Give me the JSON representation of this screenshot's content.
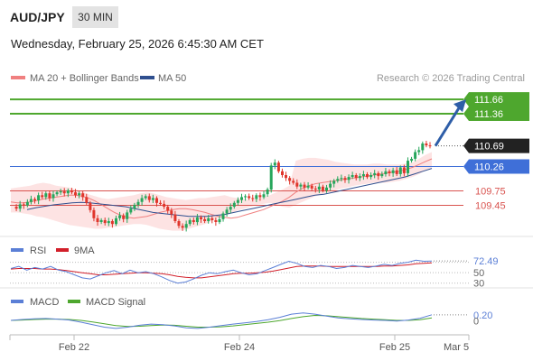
{
  "header": {
    "symbol": "AUD/JPY",
    "timeframe": "30 MIN",
    "datetime": "Wednesday, February 25, 2026 6:45:30 AM CET"
  },
  "colors": {
    "up": "#26a65b",
    "down": "#e0362c",
    "resistance": "#4ea72e",
    "support_line": "#d9534f",
    "pivot": "#3f6fd8",
    "ma20": "#f08080",
    "ma50": "#2f4f8f",
    "band_fill": "#fde3e3",
    "arrow": "#2e5ea8",
    "rsi": "#5b7fd6",
    "rsi_ma": "#d21f2a",
    "macd": "#5b7fd6",
    "macd_signal": "#4ea72e"
  },
  "chart_data": [
    {
      "type": "candlestick",
      "legend": [
        {
          "label": "MA 20 + Bollinger Bands",
          "color": "#f08080"
        },
        {
          "label": "MA 50",
          "color": "#2f4f8f"
        }
      ],
      "legend_placement": "top-left",
      "credit": "Research © 2026 Trading Central",
      "ylim": [
        108.8,
        111.85
      ],
      "levels": [
        {
          "value": 111.66,
          "label": "111.66",
          "kind": "resistance"
        },
        {
          "value": 111.36,
          "label": "111.36",
          "kind": "resistance"
        },
        {
          "value": 110.69,
          "label": "110.69",
          "kind": "last"
        },
        {
          "value": 110.26,
          "label": "110.26",
          "kind": "pivot"
        },
        {
          "value": 109.75,
          "label": "109.75",
          "kind": "support"
        },
        {
          "value": 109.45,
          "label": "109.45",
          "kind": "support"
        }
      ],
      "closes": [
        109.42,
        109.38,
        109.47,
        109.45,
        109.52,
        109.58,
        109.55,
        109.66,
        109.62,
        109.7,
        109.6,
        109.68,
        109.72,
        109.74,
        109.7,
        109.76,
        109.72,
        109.66,
        109.7,
        109.62,
        109.5,
        109.35,
        109.18,
        109.1,
        109.14,
        109.08,
        109.12,
        109.06,
        109.18,
        109.24,
        109.16,
        109.3,
        109.38,
        109.46,
        109.52,
        109.6,
        109.64,
        109.56,
        109.6,
        109.5,
        109.48,
        109.42,
        109.34,
        109.26,
        109.12,
        109.02,
        108.98,
        109.06,
        109.14,
        109.1,
        109.2,
        109.16,
        109.12,
        109.18,
        109.14,
        109.1,
        109.16,
        109.28,
        109.36,
        109.42,
        109.5,
        109.56,
        109.62,
        109.64,
        109.6,
        109.58,
        109.66,
        109.62,
        109.68,
        109.78,
        110.28,
        110.34,
        110.16,
        110.08,
        110.02,
        109.96,
        109.92,
        109.84,
        109.88,
        109.82,
        109.86,
        109.8,
        109.78,
        109.84,
        109.76,
        109.82,
        109.9,
        109.96,
        110.0,
        110.02,
        109.98,
        110.04,
        110.08,
        110.02,
        110.06,
        110.1,
        110.04,
        110.08,
        110.12,
        110.06,
        110.1,
        110.16,
        110.12,
        110.18,
        110.1,
        110.24,
        110.12,
        110.38,
        110.42,
        110.56,
        110.6,
        110.74,
        110.7,
        110.69
      ],
      "bands": {
        "upper": [
          109.8,
          109.82,
          109.84,
          109.86,
          109.9,
          109.92,
          109.9,
          109.86,
          109.84,
          109.82,
          109.78,
          109.74,
          109.68,
          109.64,
          109.6,
          109.58,
          109.6,
          109.62,
          109.64,
          109.66,
          109.7,
          109.72,
          109.7,
          109.66,
          109.62,
          109.6,
          109.58,
          109.56,
          109.58,
          109.6,
          109.6,
          109.62,
          109.64,
          109.66,
          109.62,
          109.6,
          109.58,
          109.56,
          109.58,
          109.62,
          109.66,
          109.72,
          109.78,
          109.86,
          110.38,
          110.42,
          110.44,
          110.44,
          110.42,
          110.4,
          110.36,
          110.34,
          110.32,
          110.3,
          110.3,
          110.3,
          110.32,
          110.32,
          110.3,
          110.3,
          110.3,
          110.32,
          110.34,
          110.42,
          110.5,
          110.56
        ],
        "lower": [
          109.3,
          109.3,
          109.28,
          109.26,
          109.22,
          109.2,
          109.16,
          109.12,
          109.08,
          109.04,
          109.02,
          109.0,
          108.98,
          108.96,
          108.96,
          108.98,
          109.0,
          109.02,
          109.04,
          109.06,
          109.06,
          109.04,
          109.0,
          108.96,
          108.94,
          108.92,
          108.92,
          108.94,
          108.98,
          109.02,
          109.06,
          109.12,
          109.18,
          109.24,
          109.28,
          109.34,
          109.38,
          109.42,
          109.46,
          109.48,
          109.5,
          109.46,
          109.42,
          109.4,
          109.46,
          109.52,
          109.58,
          109.64,
          109.68,
          109.72,
          109.76,
          109.8,
          109.82,
          109.86,
          109.88,
          109.9,
          109.92,
          109.92,
          109.92,
          109.94,
          109.96,
          110.0,
          110.04,
          110.1,
          110.18,
          110.24
        ]
      },
      "ma20": [
        109.52,
        109.5,
        109.5,
        109.52,
        109.55,
        109.58,
        109.6,
        109.62,
        109.64,
        109.66,
        109.66,
        109.64,
        109.6,
        109.54,
        109.46,
        109.38,
        109.3,
        109.24,
        109.2,
        109.18,
        109.2,
        109.22,
        109.26,
        109.3,
        109.33,
        109.36,
        109.38,
        109.38,
        109.36,
        109.33,
        109.3,
        109.26,
        109.22,
        109.2,
        109.18,
        109.2,
        109.24,
        109.28,
        109.32,
        109.36,
        109.42,
        109.48,
        109.54,
        109.62,
        109.72,
        109.8,
        109.86,
        109.9,
        109.92,
        109.94,
        109.96,
        109.98,
        110.0,
        110.02,
        110.04,
        110.06,
        110.08,
        110.1,
        110.12,
        110.14,
        110.16,
        110.2,
        110.24,
        110.3,
        110.36,
        110.42
      ],
      "ma50": [
        109.36,
        109.4,
        109.43,
        109.46,
        109.48,
        109.5,
        109.51,
        109.5,
        109.48,
        109.46,
        109.44,
        109.42,
        109.38,
        109.34,
        109.3,
        109.28,
        109.26,
        109.24,
        109.22,
        109.22,
        109.22,
        109.24,
        109.26,
        109.3,
        109.34,
        109.38,
        109.42,
        109.46,
        109.5,
        109.54,
        109.58,
        109.62,
        109.66,
        109.68,
        109.72,
        109.76,
        109.8,
        109.84,
        109.88,
        109.92,
        109.96,
        110.0,
        110.04,
        110.1,
        110.16,
        110.22
      ]
    },
    {
      "type": "line",
      "legend": [
        {
          "label": "RSI",
          "color": "#5b7fd6"
        },
        {
          "label": "9MA",
          "color": "#d21f2a"
        }
      ],
      "ylim": [
        26,
        78
      ],
      "guides": [
        70,
        50,
        30
      ],
      "tick_labels": [
        "72.49",
        "50",
        "30"
      ],
      "series": [
        {
          "name": "RSI",
          "values": [
            58,
            62,
            55,
            60,
            57,
            62,
            55,
            52,
            46,
            40,
            38,
            44,
            50,
            54,
            48,
            55,
            50,
            52,
            48,
            42,
            35,
            30,
            32,
            38,
            45,
            50,
            48,
            52,
            55,
            50,
            46,
            48,
            54,
            60,
            66,
            72,
            68,
            62,
            60,
            64,
            62,
            58,
            60,
            64,
            62,
            60,
            63,
            66,
            64,
            68,
            70,
            74,
            72,
            72.49
          ]
        },
        {
          "name": "9MA",
          "values": [
            57,
            58,
            58,
            58,
            57,
            57,
            56,
            54,
            52,
            50,
            48,
            46,
            46,
            47,
            48,
            49,
            50,
            50,
            49,
            48,
            46,
            43,
            41,
            40,
            40,
            42,
            44,
            46,
            48,
            49,
            49,
            50,
            51,
            53,
            56,
            59,
            62,
            63,
            63,
            63,
            62,
            62,
            62,
            62,
            62,
            62,
            62,
            63,
            63,
            64,
            65,
            67,
            68,
            69
          ]
        }
      ]
    },
    {
      "type": "line",
      "legend": [
        {
          "label": "MACD",
          "color": "#5b7fd6"
        },
        {
          "label": "MACD Signal",
          "color": "#4ea72e"
        }
      ],
      "ylim": [
        -0.42,
        0.4
      ],
      "tick_labels": [
        "0.20",
        "0"
      ],
      "series": [
        {
          "name": "MACD",
          "values": [
            0.02,
            0.05,
            0.07,
            0.08,
            0.06,
            0.03,
            -0.04,
            -0.12,
            -0.2,
            -0.24,
            -0.2,
            -0.14,
            -0.1,
            -0.12,
            -0.16,
            -0.22,
            -0.24,
            -0.2,
            -0.15,
            -0.1,
            -0.06,
            -0.02,
            0.04,
            0.12,
            0.22,
            0.26,
            0.22,
            0.16,
            0.1,
            0.07,
            0.05,
            0.03,
            0.02,
            0.0,
            0.03,
            0.09,
            0.2
          ]
        },
        {
          "name": "MACD Signal",
          "values": [
            0.02,
            0.03,
            0.05,
            0.06,
            0.06,
            0.05,
            0.02,
            -0.03,
            -0.09,
            -0.15,
            -0.18,
            -0.17,
            -0.15,
            -0.13,
            -0.14,
            -0.17,
            -0.2,
            -0.2,
            -0.19,
            -0.16,
            -0.12,
            -0.08,
            -0.04,
            0.01,
            0.08,
            0.14,
            0.18,
            0.17,
            0.14,
            0.11,
            0.08,
            0.06,
            0.04,
            0.02,
            0.02,
            0.04,
            0.1
          ]
        }
      ]
    }
  ],
  "x_axis": {
    "ticks": [
      "Feb 22",
      "Feb 24",
      "Feb 25",
      "Mar 5"
    ]
  }
}
